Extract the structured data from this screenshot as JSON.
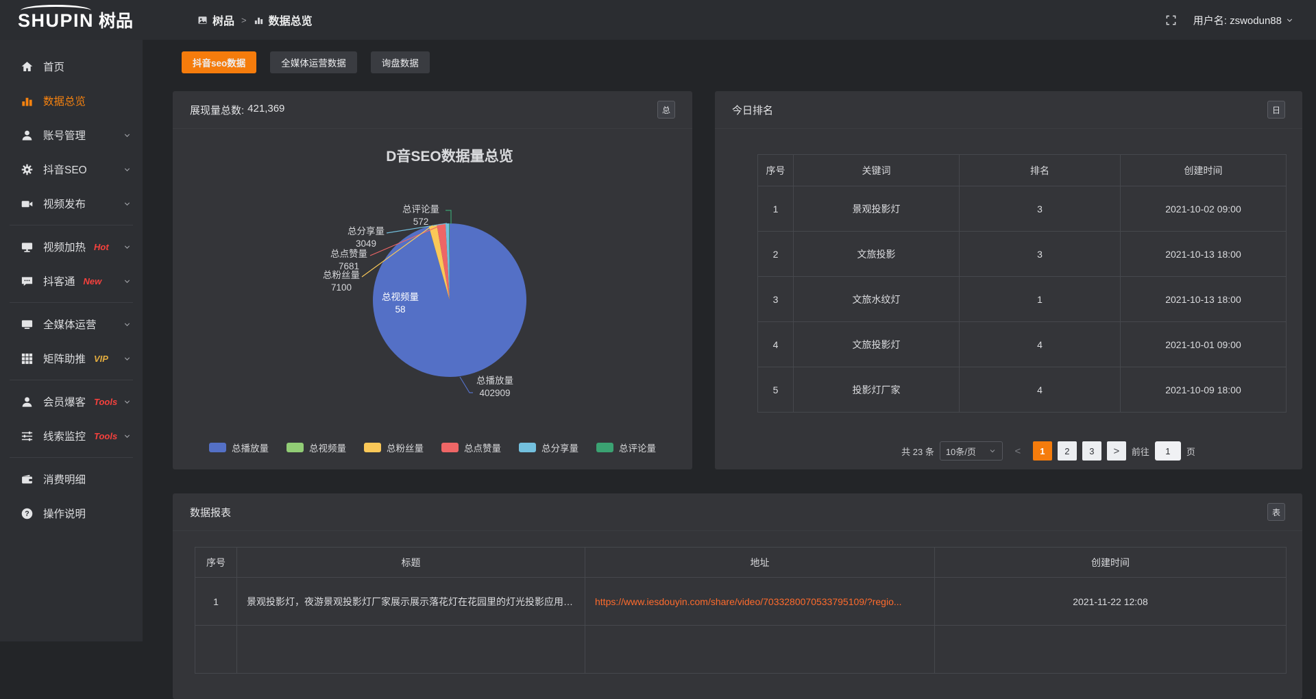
{
  "header": {
    "logo_text": "SHUPIN",
    "logo_suffix": "树品",
    "breadcrumb": {
      "root": "树品",
      "separator": ">",
      "current": "数据总览"
    },
    "username": "用户名: zswodun88"
  },
  "sidebar": {
    "items": [
      {
        "id": "home",
        "icon": "home-icon",
        "label": "首页"
      },
      {
        "id": "data-overview",
        "icon": "bar-chart-icon",
        "label": "数据总览",
        "active": true
      },
      {
        "id": "account-manage",
        "icon": "user-icon",
        "label": "账号管理",
        "chevron": true
      },
      {
        "id": "douyin-seo",
        "icon": "gear-icon",
        "label": "抖音SEO",
        "chevron": true
      },
      {
        "id": "video-publish",
        "icon": "video-icon",
        "label": "视频发布",
        "chevron": true
      },
      {
        "divider": true
      },
      {
        "id": "video-heat",
        "icon": "monitor-icon",
        "label": "视频加热",
        "badge": "Hot",
        "badge_color": "#f5413d",
        "chevron": true
      },
      {
        "id": "douketong",
        "icon": "chat-icon",
        "label": "抖客通",
        "badge": "New",
        "badge_color": "#f5413d",
        "chevron": true
      },
      {
        "divider": true
      },
      {
        "id": "media-operation",
        "icon": "screen-icon",
        "label": "全媒体运营",
        "chevron": true
      },
      {
        "id": "matrix-boost",
        "icon": "grid-icon",
        "label": "矩阵助推",
        "badge": "VIP",
        "badge_color": "#e2ac3f",
        "chevron": true
      },
      {
        "divider": true
      },
      {
        "id": "member-baoke",
        "icon": "person-icon",
        "label": "会员爆客",
        "badge": "Tools",
        "badge_color": "#f5413d",
        "chevron": true
      },
      {
        "id": "clue-monitor",
        "icon": "sliders-icon",
        "label": "线索监控",
        "badge": "Tools",
        "badge_color": "#f5413d",
        "chevron": true
      },
      {
        "divider": true
      },
      {
        "id": "consume-detail",
        "icon": "wallet-icon",
        "label": "消费明细"
      },
      {
        "id": "operation-guide",
        "icon": "question-icon",
        "label": "操作说明"
      }
    ]
  },
  "tabs": [
    {
      "id": "douyin-seo-data",
      "label": "抖音seo数据",
      "active": true
    },
    {
      "id": "media-operation-data",
      "label": "全媒体运营数据"
    },
    {
      "id": "inquiry-data",
      "label": "询盘数据"
    }
  ],
  "chart_panel": {
    "summary_label": "展现量总数:",
    "summary_value": "421,369",
    "corner_button": "总"
  },
  "chart_data": {
    "type": "pie",
    "title": "D音SEO数据量总览",
    "total": 421369,
    "legend_position": "bottom",
    "series": [
      {
        "name": "总播放量",
        "value": 402909,
        "color": "#5470c6"
      },
      {
        "name": "总视频量",
        "value": 58,
        "color": "#91cc75"
      },
      {
        "name": "总粉丝量",
        "value": 7100,
        "color": "#fac858"
      },
      {
        "name": "总点赞量",
        "value": 7681,
        "color": "#ee6666"
      },
      {
        "name": "总分享量",
        "value": 3049,
        "color": "#73c0de"
      },
      {
        "name": "总评论量",
        "value": 572,
        "color": "#3ba272"
      }
    ]
  },
  "ranking": {
    "title": "今日排名",
    "corner_button": "日",
    "columns": [
      "序号",
      "关键词",
      "排名",
      "创建时间"
    ],
    "rows": [
      [
        "1",
        "景观投影灯",
        "3",
        "2021-10-02 09:00"
      ],
      [
        "2",
        "文旅投影",
        "3",
        "2021-10-13 18:00"
      ],
      [
        "3",
        "文旅水纹灯",
        "1",
        "2021-10-13 18:00"
      ],
      [
        "4",
        "文旅投影灯",
        "4",
        "2021-10-01 09:00"
      ],
      [
        "5",
        "投影灯厂家",
        "4",
        "2021-10-09 18:00"
      ]
    ],
    "pagination": {
      "total_label": "共 23 条",
      "page_size": "10条/页",
      "prev": "<",
      "pages": [
        "1",
        "2",
        "3"
      ],
      "active_page": "1",
      "next": ">",
      "goto_label": "前往",
      "goto_value": "1",
      "goto_unit": "页"
    }
  },
  "report": {
    "title": "数据报表",
    "corner_button": "表",
    "columns": [
      "序号",
      "标题",
      "地址",
      "创建时间"
    ],
    "rows": [
      {
        "index": "1",
        "title": "景观投影灯，夜游景观投影灯厂家展示展示落花灯在花园里的灯光投影应用效果 #...",
        "url": "https://www.iesdouyin.com/share/video/7033280070533795109/?regio...",
        "time": "2021-11-22 12:08"
      },
      {
        "index": "",
        "title": "",
        "url": "",
        "time": ""
      }
    ]
  },
  "colors": {
    "accent_orange": "#f57c0c",
    "link_orange": "#ff6b2c",
    "badge_red": "#f5413d",
    "badge_gold": "#e2ac3f"
  }
}
